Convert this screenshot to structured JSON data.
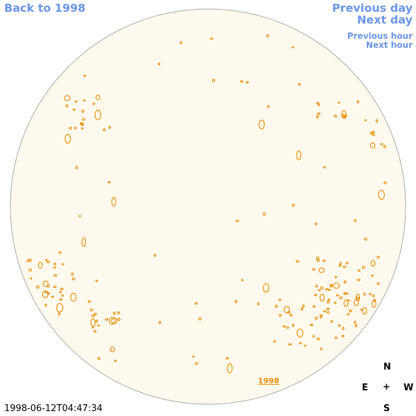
{
  "nav": {
    "back": "Back to 1998",
    "previous_day": "Previous day",
    "next_day": "Next day",
    "previous_hour": "Previous hour",
    "next_hour": "Next hour"
  },
  "disk_label": "1998",
  "timestamp": "1998-06-12T04:47:34",
  "compass": {
    "north": "N",
    "east": "E",
    "center": "+",
    "west": "W",
    "south": "S"
  }
}
